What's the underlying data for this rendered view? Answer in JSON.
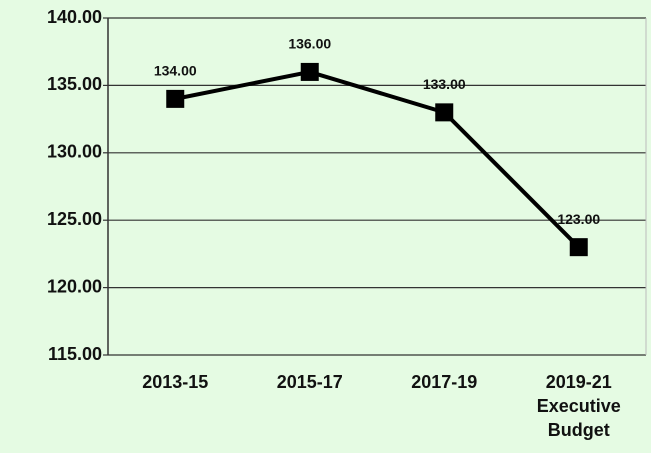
{
  "chart_data": {
    "type": "line",
    "categories": [
      "2013-15",
      "2015-17",
      "2017-19",
      "2019-21 Executive Budget"
    ],
    "series": [
      {
        "name": null,
        "color": "#000000",
        "values": [
          134,
          136,
          133,
          123
        ],
        "value_labels": [
          "134.00",
          "136.00",
          "133.00",
          "123.00"
        ]
      }
    ],
    "ylim": [
      115,
      140
    ],
    "yticks": [
      {
        "value": 115,
        "label": "115.00"
      },
      {
        "value": 120,
        "label": "120.00"
      },
      {
        "value": 125,
        "label": "125.00"
      },
      {
        "value": 130,
        "label": "130.00"
      },
      {
        "value": 135,
        "label": "135.00"
      },
      {
        "value": 140,
        "label": "140.00"
      }
    ],
    "grid": true
  }
}
